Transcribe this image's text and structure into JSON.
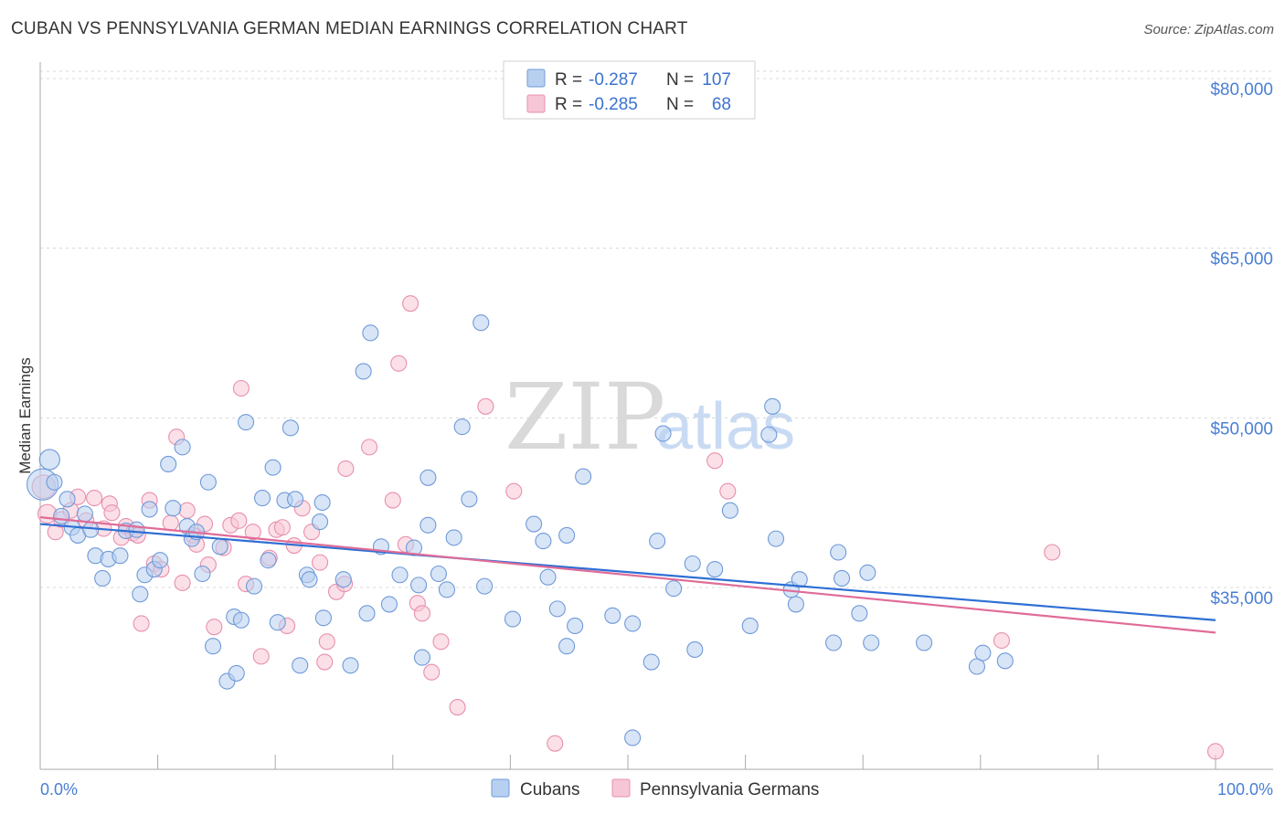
{
  "title": "CUBAN VS PENNSYLVANIA GERMAN MEDIAN EARNINGS CORRELATION CHART",
  "source": "Source: ZipAtlas.com",
  "colors": {
    "cubans_fill": "#b8d0f0",
    "cubans_stroke": "#6f9ad8",
    "cubans_line": "#2e6fd4",
    "pg_fill": "#f7c6d6",
    "pg_stroke": "#e890ac",
    "pg_line": "#e06c98",
    "grid": "#d8d8d8",
    "axis_text": "#4a7fd4"
  },
  "legend": {
    "rows": [
      {
        "r_label": "R =",
        "r_value": "-0.287",
        "n_label": "N =",
        "n_value": "107"
      },
      {
        "r_label": "R =",
        "r_value": "-0.285",
        "n_label": "N =",
        "n_value": "68"
      }
    ]
  },
  "watermark": {
    "zip": "ZIP",
    "atlas": "atlas"
  },
  "chart_data": {
    "type": "scatter",
    "title": "CUBAN VS PENNSYLVANIA GERMAN MEDIAN EARNINGS CORRELATION CHART",
    "xlabel": "",
    "ylabel": "Median Earnings",
    "xlim": [
      0,
      100
    ],
    "ylim": [
      20000,
      83000
    ],
    "x_tick_labels": [
      "0.0%",
      "100.0%"
    ],
    "y_ticks": [
      35000,
      50000,
      65000,
      80000
    ],
    "y_tick_labels": [
      "$35,000",
      "$50,000",
      "$65,000",
      "$80,000"
    ],
    "series": [
      {
        "name": "Cubans",
        "trend": {
          "x": [
            0,
            100
          ],
          "y": [
            41500,
            33000
          ]
        },
        "points": [
          {
            "x": 0.2,
            "y": 45000,
            "s": 2
          },
          {
            "x": 0.8,
            "y": 47200,
            "s": 1.3
          },
          {
            "x": 1.2,
            "y": 45200,
            "s": 1
          },
          {
            "x": 1.8,
            "y": 42200
          },
          {
            "x": 2.3,
            "y": 43700
          },
          {
            "x": 2.7,
            "y": 41200
          },
          {
            "x": 3.2,
            "y": 40500
          },
          {
            "x": 3.8,
            "y": 42400
          },
          {
            "x": 4.3,
            "y": 41000
          },
          {
            "x": 4.7,
            "y": 38700
          },
          {
            "x": 5.3,
            "y": 36700
          },
          {
            "x": 5.8,
            "y": 38400
          },
          {
            "x": 6.8,
            "y": 38700
          },
          {
            "x": 7.3,
            "y": 40900
          },
          {
            "x": 8.2,
            "y": 41000
          },
          {
            "x": 8.5,
            "y": 35300
          },
          {
            "x": 8.9,
            "y": 37000
          },
          {
            "x": 9.3,
            "y": 42800
          },
          {
            "x": 9.7,
            "y": 37500
          },
          {
            "x": 10.2,
            "y": 38300
          },
          {
            "x": 10.9,
            "y": 46800
          },
          {
            "x": 11.3,
            "y": 42900
          },
          {
            "x": 12.1,
            "y": 48300
          },
          {
            "x": 12.5,
            "y": 41300
          },
          {
            "x": 12.9,
            "y": 40200
          },
          {
            "x": 13.3,
            "y": 40800
          },
          {
            "x": 13.8,
            "y": 37100
          },
          {
            "x": 14.3,
            "y": 45200
          },
          {
            "x": 14.7,
            "y": 30700
          },
          {
            "x": 15.3,
            "y": 39500
          },
          {
            "x": 15.9,
            "y": 27600
          },
          {
            "x": 16.5,
            "y": 33300
          },
          {
            "x": 16.7,
            "y": 28300
          },
          {
            "x": 17.1,
            "y": 33000
          },
          {
            "x": 17.5,
            "y": 50500
          },
          {
            "x": 18.2,
            "y": 36000
          },
          {
            "x": 18.9,
            "y": 43800
          },
          {
            "x": 19.4,
            "y": 38300
          },
          {
            "x": 19.8,
            "y": 46500
          },
          {
            "x": 20.2,
            "y": 32800
          },
          {
            "x": 20.8,
            "y": 43600
          },
          {
            "x": 21.3,
            "y": 50000
          },
          {
            "x": 21.7,
            "y": 43700
          },
          {
            "x": 22.1,
            "y": 29000
          },
          {
            "x": 22.7,
            "y": 37000
          },
          {
            "x": 22.9,
            "y": 36600
          },
          {
            "x": 23.8,
            "y": 41700
          },
          {
            "x": 24.0,
            "y": 43400
          },
          {
            "x": 24.1,
            "y": 33200
          },
          {
            "x": 25.8,
            "y": 36600
          },
          {
            "x": 26.4,
            "y": 29000
          },
          {
            "x": 27.5,
            "y": 55000
          },
          {
            "x": 27.8,
            "y": 33600
          },
          {
            "x": 28.1,
            "y": 58400
          },
          {
            "x": 29.0,
            "y": 39500
          },
          {
            "x": 29.7,
            "y": 34400
          },
          {
            "x": 30.6,
            "y": 37000
          },
          {
            "x": 31.8,
            "y": 39400
          },
          {
            "x": 32.2,
            "y": 36100
          },
          {
            "x": 32.5,
            "y": 29700
          },
          {
            "x": 33.0,
            "y": 41400
          },
          {
            "x": 33.0,
            "y": 45600
          },
          {
            "x": 33.9,
            "y": 37100
          },
          {
            "x": 34.6,
            "y": 35700
          },
          {
            "x": 35.2,
            "y": 40300
          },
          {
            "x": 35.9,
            "y": 50100
          },
          {
            "x": 36.5,
            "y": 43700
          },
          {
            "x": 37.5,
            "y": 59300
          },
          {
            "x": 37.8,
            "y": 36000
          },
          {
            "x": 40.2,
            "y": 33100
          },
          {
            "x": 42.0,
            "y": 41500
          },
          {
            "x": 42.8,
            "y": 40000
          },
          {
            "x": 43.2,
            "y": 36800
          },
          {
            "x": 44.0,
            "y": 34000
          },
          {
            "x": 44.8,
            "y": 40500
          },
          {
            "x": 44.8,
            "y": 30700
          },
          {
            "x": 45.5,
            "y": 32500
          },
          {
            "x": 46.2,
            "y": 45700
          },
          {
            "x": 48.7,
            "y": 33400
          },
          {
            "x": 50.4,
            "y": 22600
          },
          {
            "x": 50.4,
            "y": 32700
          },
          {
            "x": 52.0,
            "y": 29300
          },
          {
            "x": 52.5,
            "y": 40000
          },
          {
            "x": 53.0,
            "y": 49500
          },
          {
            "x": 53.9,
            "y": 35800
          },
          {
            "x": 55.5,
            "y": 38000
          },
          {
            "x": 55.7,
            "y": 30400
          },
          {
            "x": 57.4,
            "y": 37500
          },
          {
            "x": 58.7,
            "y": 42700
          },
          {
            "x": 60.4,
            "y": 32500
          },
          {
            "x": 62.0,
            "y": 49400
          },
          {
            "x": 62.3,
            "y": 51900
          },
          {
            "x": 62.6,
            "y": 40200
          },
          {
            "x": 63.9,
            "y": 35700
          },
          {
            "x": 64.3,
            "y": 34400
          },
          {
            "x": 64.6,
            "y": 36600
          },
          {
            "x": 67.5,
            "y": 31000
          },
          {
            "x": 67.9,
            "y": 39000
          },
          {
            "x": 68.2,
            "y": 36700
          },
          {
            "x": 69.7,
            "y": 33600
          },
          {
            "x": 70.4,
            "y": 37200
          },
          {
            "x": 70.7,
            "y": 31000
          },
          {
            "x": 75.2,
            "y": 31000
          },
          {
            "x": 79.7,
            "y": 28900
          },
          {
            "x": 80.2,
            "y": 30100
          },
          {
            "x": 82.1,
            "y": 29400
          }
        ]
      },
      {
        "name": "Pennsylvania Germans",
        "trend": {
          "x": [
            0,
            100
          ],
          "y": [
            42100,
            31900
          ]
        },
        "points": [
          {
            "x": 0.3,
            "y": 44800,
            "s": 1.5
          },
          {
            "x": 0.6,
            "y": 42400,
            "s": 1.2
          },
          {
            "x": 1.3,
            "y": 40800
          },
          {
            "x": 1.8,
            "y": 41900
          },
          {
            "x": 2.6,
            "y": 42700
          },
          {
            "x": 3.2,
            "y": 43900
          },
          {
            "x": 3.9,
            "y": 41800
          },
          {
            "x": 4.6,
            "y": 43800
          },
          {
            "x": 5.4,
            "y": 41100
          },
          {
            "x": 5.9,
            "y": 43300
          },
          {
            "x": 6.1,
            "y": 42500
          },
          {
            "x": 6.9,
            "y": 40300
          },
          {
            "x": 7.3,
            "y": 41300
          },
          {
            "x": 7.9,
            "y": 40700
          },
          {
            "x": 8.3,
            "y": 40500
          },
          {
            "x": 8.6,
            "y": 32700
          },
          {
            "x": 9.3,
            "y": 43600
          },
          {
            "x": 9.7,
            "y": 38000
          },
          {
            "x": 10.3,
            "y": 37500
          },
          {
            "x": 11.1,
            "y": 41600
          },
          {
            "x": 11.6,
            "y": 49200
          },
          {
            "x": 12.1,
            "y": 36300
          },
          {
            "x": 12.5,
            "y": 42700
          },
          {
            "x": 13.0,
            "y": 40500
          },
          {
            "x": 13.3,
            "y": 39700
          },
          {
            "x": 14.0,
            "y": 41500
          },
          {
            "x": 14.3,
            "y": 37900
          },
          {
            "x": 14.8,
            "y": 32400
          },
          {
            "x": 15.6,
            "y": 39400
          },
          {
            "x": 16.2,
            "y": 41400
          },
          {
            "x": 16.9,
            "y": 41800
          },
          {
            "x": 17.1,
            "y": 53500
          },
          {
            "x": 17.5,
            "y": 36200
          },
          {
            "x": 18.1,
            "y": 40800
          },
          {
            "x": 18.8,
            "y": 29800
          },
          {
            "x": 19.5,
            "y": 38500
          },
          {
            "x": 20.1,
            "y": 41000
          },
          {
            "x": 20.6,
            "y": 41200
          },
          {
            "x": 21.0,
            "y": 32500
          },
          {
            "x": 21.6,
            "y": 39600
          },
          {
            "x": 22.3,
            "y": 42900
          },
          {
            "x": 23.1,
            "y": 40800
          },
          {
            "x": 23.8,
            "y": 38100
          },
          {
            "x": 24.2,
            "y": 29300
          },
          {
            "x": 24.4,
            "y": 31100
          },
          {
            "x": 25.2,
            "y": 35500
          },
          {
            "x": 25.9,
            "y": 36200
          },
          {
            "x": 26.0,
            "y": 46400
          },
          {
            "x": 28.0,
            "y": 48300
          },
          {
            "x": 30.0,
            "y": 43600
          },
          {
            "x": 30.5,
            "y": 55700
          },
          {
            "x": 31.1,
            "y": 39700
          },
          {
            "x": 31.5,
            "y": 61000
          },
          {
            "x": 32.1,
            "y": 34500
          },
          {
            "x": 32.5,
            "y": 33600
          },
          {
            "x": 33.3,
            "y": 28400
          },
          {
            "x": 34.1,
            "y": 31100
          },
          {
            "x": 35.5,
            "y": 25300
          },
          {
            "x": 37.9,
            "y": 51900
          },
          {
            "x": 40.3,
            "y": 44400
          },
          {
            "x": 43.8,
            "y": 22100
          },
          {
            "x": 57.4,
            "y": 47100
          },
          {
            "x": 58.5,
            "y": 44400
          },
          {
            "x": 81.8,
            "y": 31200
          },
          {
            "x": 86.1,
            "y": 39000
          },
          {
            "x": 100.0,
            "y": 21400
          }
        ]
      }
    ]
  },
  "bottom_legend": [
    {
      "label": "Cubans"
    },
    {
      "label": "Pennsylvania Germans"
    }
  ]
}
